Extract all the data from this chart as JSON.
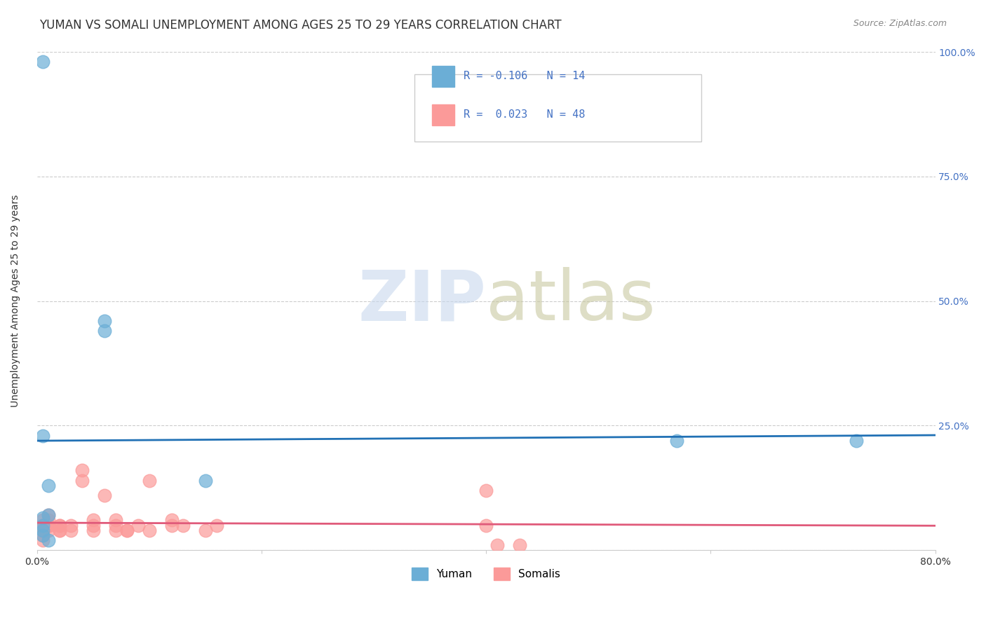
{
  "title": "YUMAN VS SOMALI UNEMPLOYMENT AMONG AGES 25 TO 29 YEARS CORRELATION CHART",
  "source": "Source: ZipAtlas.com",
  "xlabel": "",
  "ylabel": "Unemployment Among Ages 25 to 29 years",
  "xlim": [
    0.0,
    0.8
  ],
  "ylim": [
    0.0,
    1.0
  ],
  "xticks": [
    0.0,
    0.2,
    0.4,
    0.6,
    0.8
  ],
  "xticklabels": [
    "0.0%",
    "",
    "",
    "",
    "80.0%"
  ],
  "ytick_positions": [
    0.0,
    0.25,
    0.5,
    0.75,
    1.0
  ],
  "ytick_labels_right": [
    "",
    "25.0%",
    "50.0%",
    "75.0%",
    "100.0%"
  ],
  "yuman_color": "#6baed6",
  "somali_color": "#fb9a99",
  "yuman_line_color": "#2171b5",
  "somali_line_color": "#e05a7a",
  "R_yuman": -0.106,
  "N_yuman": 14,
  "R_somali": 0.023,
  "N_somali": 48,
  "yuman_scatter_x": [
    0.005,
    0.005,
    0.06,
    0.06,
    0.01,
    0.005,
    0.005,
    0.005,
    0.01,
    0.15,
    0.57,
    0.73,
    0.005,
    0.01
  ],
  "yuman_scatter_y": [
    0.98,
    0.23,
    0.46,
    0.44,
    0.07,
    0.065,
    0.04,
    0.03,
    0.13,
    0.14,
    0.22,
    0.22,
    0.05,
    0.02
  ],
  "somali_scatter_x": [
    0.005,
    0.005,
    0.005,
    0.005,
    0.005,
    0.005,
    0.005,
    0.005,
    0.005,
    0.005,
    0.005,
    0.005,
    0.01,
    0.01,
    0.01,
    0.01,
    0.01,
    0.01,
    0.01,
    0.02,
    0.02,
    0.02,
    0.02,
    0.03,
    0.03,
    0.04,
    0.04,
    0.05,
    0.05,
    0.05,
    0.06,
    0.07,
    0.07,
    0.07,
    0.08,
    0.08,
    0.09,
    0.1,
    0.1,
    0.12,
    0.12,
    0.13,
    0.15,
    0.16,
    0.4,
    0.41,
    0.43,
    0.4
  ],
  "somali_scatter_y": [
    0.04,
    0.04,
    0.04,
    0.04,
    0.04,
    0.05,
    0.05,
    0.05,
    0.05,
    0.06,
    0.02,
    0.03,
    0.04,
    0.05,
    0.05,
    0.05,
    0.05,
    0.06,
    0.07,
    0.04,
    0.04,
    0.05,
    0.05,
    0.04,
    0.05,
    0.14,
    0.16,
    0.04,
    0.05,
    0.06,
    0.11,
    0.04,
    0.05,
    0.06,
    0.04,
    0.04,
    0.05,
    0.14,
    0.04,
    0.05,
    0.06,
    0.05,
    0.04,
    0.05,
    0.12,
    0.01,
    0.01,
    0.05
  ],
  "grid_color": "#cccccc",
  "bg_color": "#ffffff",
  "title_fontsize": 12,
  "label_fontsize": 10,
  "tick_fontsize": 10
}
